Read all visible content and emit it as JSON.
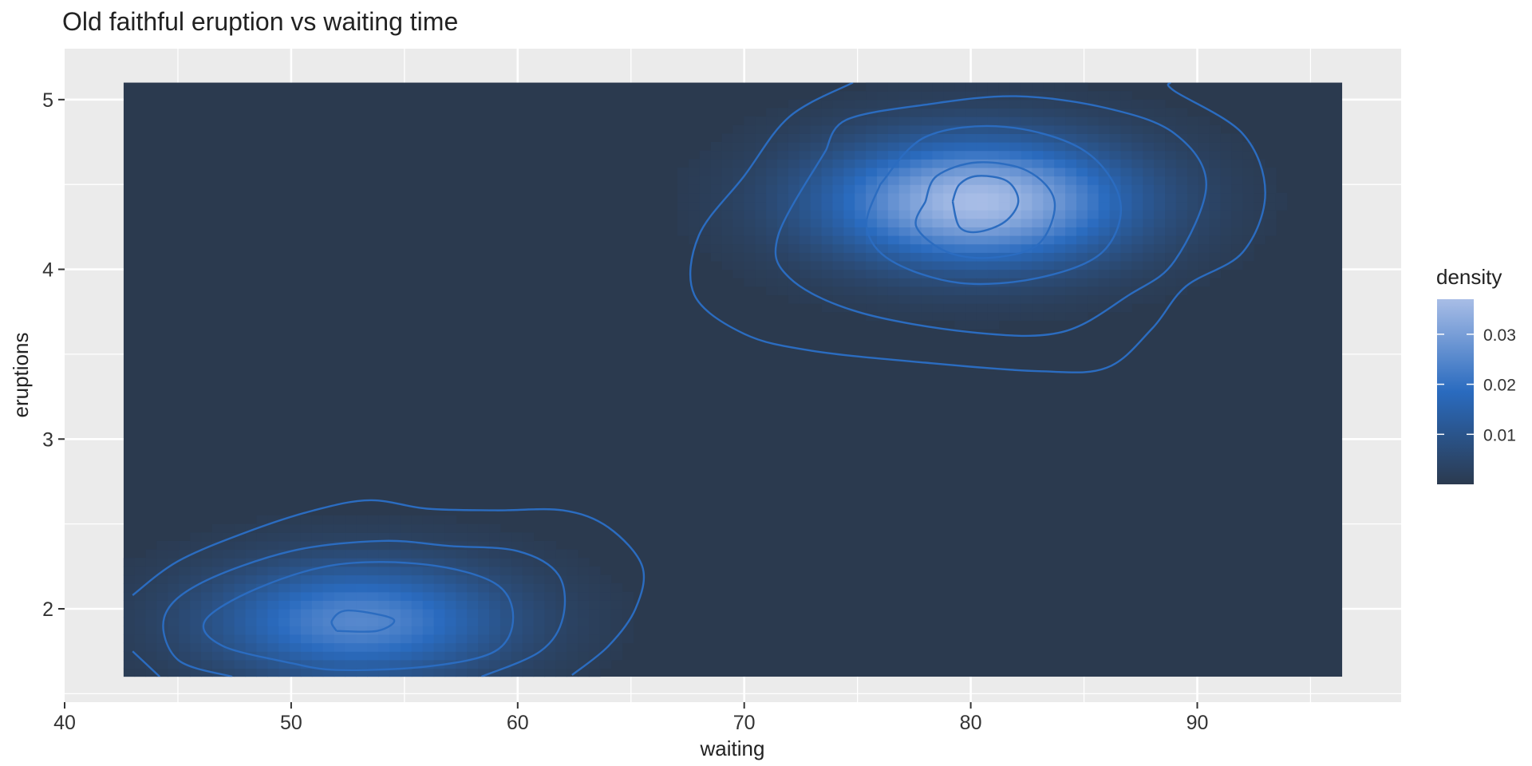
{
  "chart_data": {
    "type": "heatmap",
    "title": "Old faithful eruption vs waiting time",
    "xlabel": "waiting",
    "ylabel": "eruptions",
    "xlim": [
      40,
      99
    ],
    "ylim": [
      1.45,
      5.3
    ],
    "x_ticks": [
      40,
      50,
      60,
      70,
      80,
      90
    ],
    "y_ticks": [
      2,
      3,
      4,
      5
    ],
    "grid": true,
    "data_extent": {
      "x": [
        42.6,
        96.4
      ],
      "y": [
        1.6,
        5.1
      ]
    },
    "legend": {
      "title": "density",
      "position": "right",
      "range": [
        0.0,
        0.037
      ],
      "ticks": [
        0.01,
        0.02,
        0.03
      ],
      "tick_labels": [
        "0.01",
        "0.02",
        "0.03"
      ],
      "colors": {
        "low": "#2b3a4f",
        "mid": "#2a6bbf",
        "high": "#a8bde6"
      }
    },
    "density_peaks": [
      {
        "waiting": 80.3,
        "eruptions": 4.4,
        "density": 0.037
      },
      {
        "waiting": 53.0,
        "eruptions": 1.93,
        "density": 0.025
      }
    ],
    "series": [
      {
        "type": "contour",
        "color": "#2b6cc0",
        "contours": [
          {
            "points": [
              [
                43.0,
                2.08
              ],
              [
                45.0,
                2.28
              ],
              [
                48.0,
                2.45
              ],
              [
                51.0,
                2.58
              ],
              [
                53.5,
                2.64
              ],
              [
                56.0,
                2.59
              ],
              [
                59.0,
                2.58
              ],
              [
                62.0,
                2.58
              ],
              [
                64.0,
                2.48
              ],
              [
                65.5,
                2.25
              ],
              [
                65.2,
                2.0
              ],
              [
                64.0,
                1.78
              ],
              [
                62.4,
                1.61
              ]
            ]
          },
          {
            "points": [
              [
                43.0,
                1.75
              ],
              [
                44.2,
                1.6
              ]
            ]
          },
          {
            "points": [
              [
                47.4,
                1.6
              ],
              [
                45.0,
                1.7
              ],
              [
                44.4,
                1.95
              ],
              [
                46.0,
                2.15
              ],
              [
                50.0,
                2.34
              ],
              [
                54.0,
                2.4
              ],
              [
                57.0,
                2.37
              ],
              [
                60.0,
                2.34
              ],
              [
                61.8,
                2.2
              ],
              [
                62.0,
                1.95
              ],
              [
                61.0,
                1.75
              ],
              [
                58.4,
                1.6
              ]
            ]
          },
          {
            "points": [
              [
                50.0,
                1.68
              ],
              [
                47.0,
                1.78
              ],
              [
                46.2,
                1.93
              ],
              [
                48.5,
                2.12
              ],
              [
                52.0,
                2.26
              ],
              [
                56.0,
                2.26
              ],
              [
                59.0,
                2.15
              ],
              [
                59.8,
                1.95
              ],
              [
                59.0,
                1.75
              ],
              [
                56.0,
                1.66
              ],
              [
                52.0,
                1.64
              ],
              [
                50.0,
                1.68
              ]
            ]
          },
          {
            "points": [
              [
                52.0,
                1.87
              ],
              [
                51.8,
                1.93
              ],
              [
                52.5,
                1.99
              ],
              [
                54.5,
                1.94
              ],
              [
                53.8,
                1.87
              ],
              [
                52.0,
                1.87
              ]
            ]
          },
          {
            "points": [
              [
                74.8,
                5.1
              ],
              [
                72.0,
                4.9
              ],
              [
                70.0,
                4.55
              ],
              [
                68.0,
                4.2
              ],
              [
                67.8,
                3.85
              ],
              [
                70.0,
                3.62
              ],
              [
                73.0,
                3.52
              ],
              [
                78.0,
                3.45
              ],
              [
                83.0,
                3.4
              ],
              [
                86.0,
                3.42
              ],
              [
                88.0,
                3.65
              ],
              [
                89.5,
                3.9
              ],
              [
                92.0,
                4.1
              ],
              [
                93.0,
                4.45
              ],
              [
                92.0,
                4.8
              ],
              [
                89.0,
                5.05
              ],
              [
                88.8,
                5.1
              ]
            ]
          },
          {
            "points": [
              [
                73.6,
                4.7
              ],
              [
                71.5,
                4.2
              ],
              [
                72.0,
                3.95
              ],
              [
                75.0,
                3.75
              ],
              [
                80.0,
                3.63
              ],
              [
                84.0,
                3.63
              ],
              [
                87.0,
                3.85
              ],
              [
                89.0,
                4.05
              ],
              [
                90.4,
                4.5
              ],
              [
                89.0,
                4.8
              ],
              [
                86.0,
                4.95
              ],
              [
                82.0,
                5.02
              ],
              [
                78.0,
                4.97
              ],
              [
                74.5,
                4.88
              ],
              [
                73.6,
                4.7
              ]
            ]
          },
          {
            "points": [
              [
                76.0,
                4.5
              ],
              [
                75.4,
                4.25
              ],
              [
                76.5,
                4.05
              ],
              [
                79.5,
                3.92
              ],
              [
                83.0,
                3.95
              ],
              [
                85.8,
                4.1
              ],
              [
                86.6,
                4.4
              ],
              [
                85.0,
                4.7
              ],
              [
                81.5,
                4.84
              ],
              [
                78.0,
                4.78
              ],
              [
                76.0,
                4.5
              ]
            ]
          },
          {
            "points": [
              [
                78.0,
                4.4
              ],
              [
                77.6,
                4.25
              ],
              [
                79.0,
                4.1
              ],
              [
                81.0,
                4.07
              ],
              [
                83.0,
                4.15
              ],
              [
                83.7,
                4.4
              ],
              [
                82.5,
                4.58
              ],
              [
                80.3,
                4.63
              ],
              [
                78.5,
                4.55
              ],
              [
                78.0,
                4.4
              ]
            ]
          },
          {
            "points": [
              [
                79.2,
                4.4
              ],
              [
                79.5,
                4.25
              ],
              [
                80.3,
                4.22
              ],
              [
                81.5,
                4.28
              ],
              [
                82.1,
                4.4
              ],
              [
                81.6,
                4.52
              ],
              [
                80.3,
                4.55
              ],
              [
                79.5,
                4.5
              ],
              [
                79.2,
                4.4
              ]
            ]
          }
        ]
      }
    ]
  }
}
